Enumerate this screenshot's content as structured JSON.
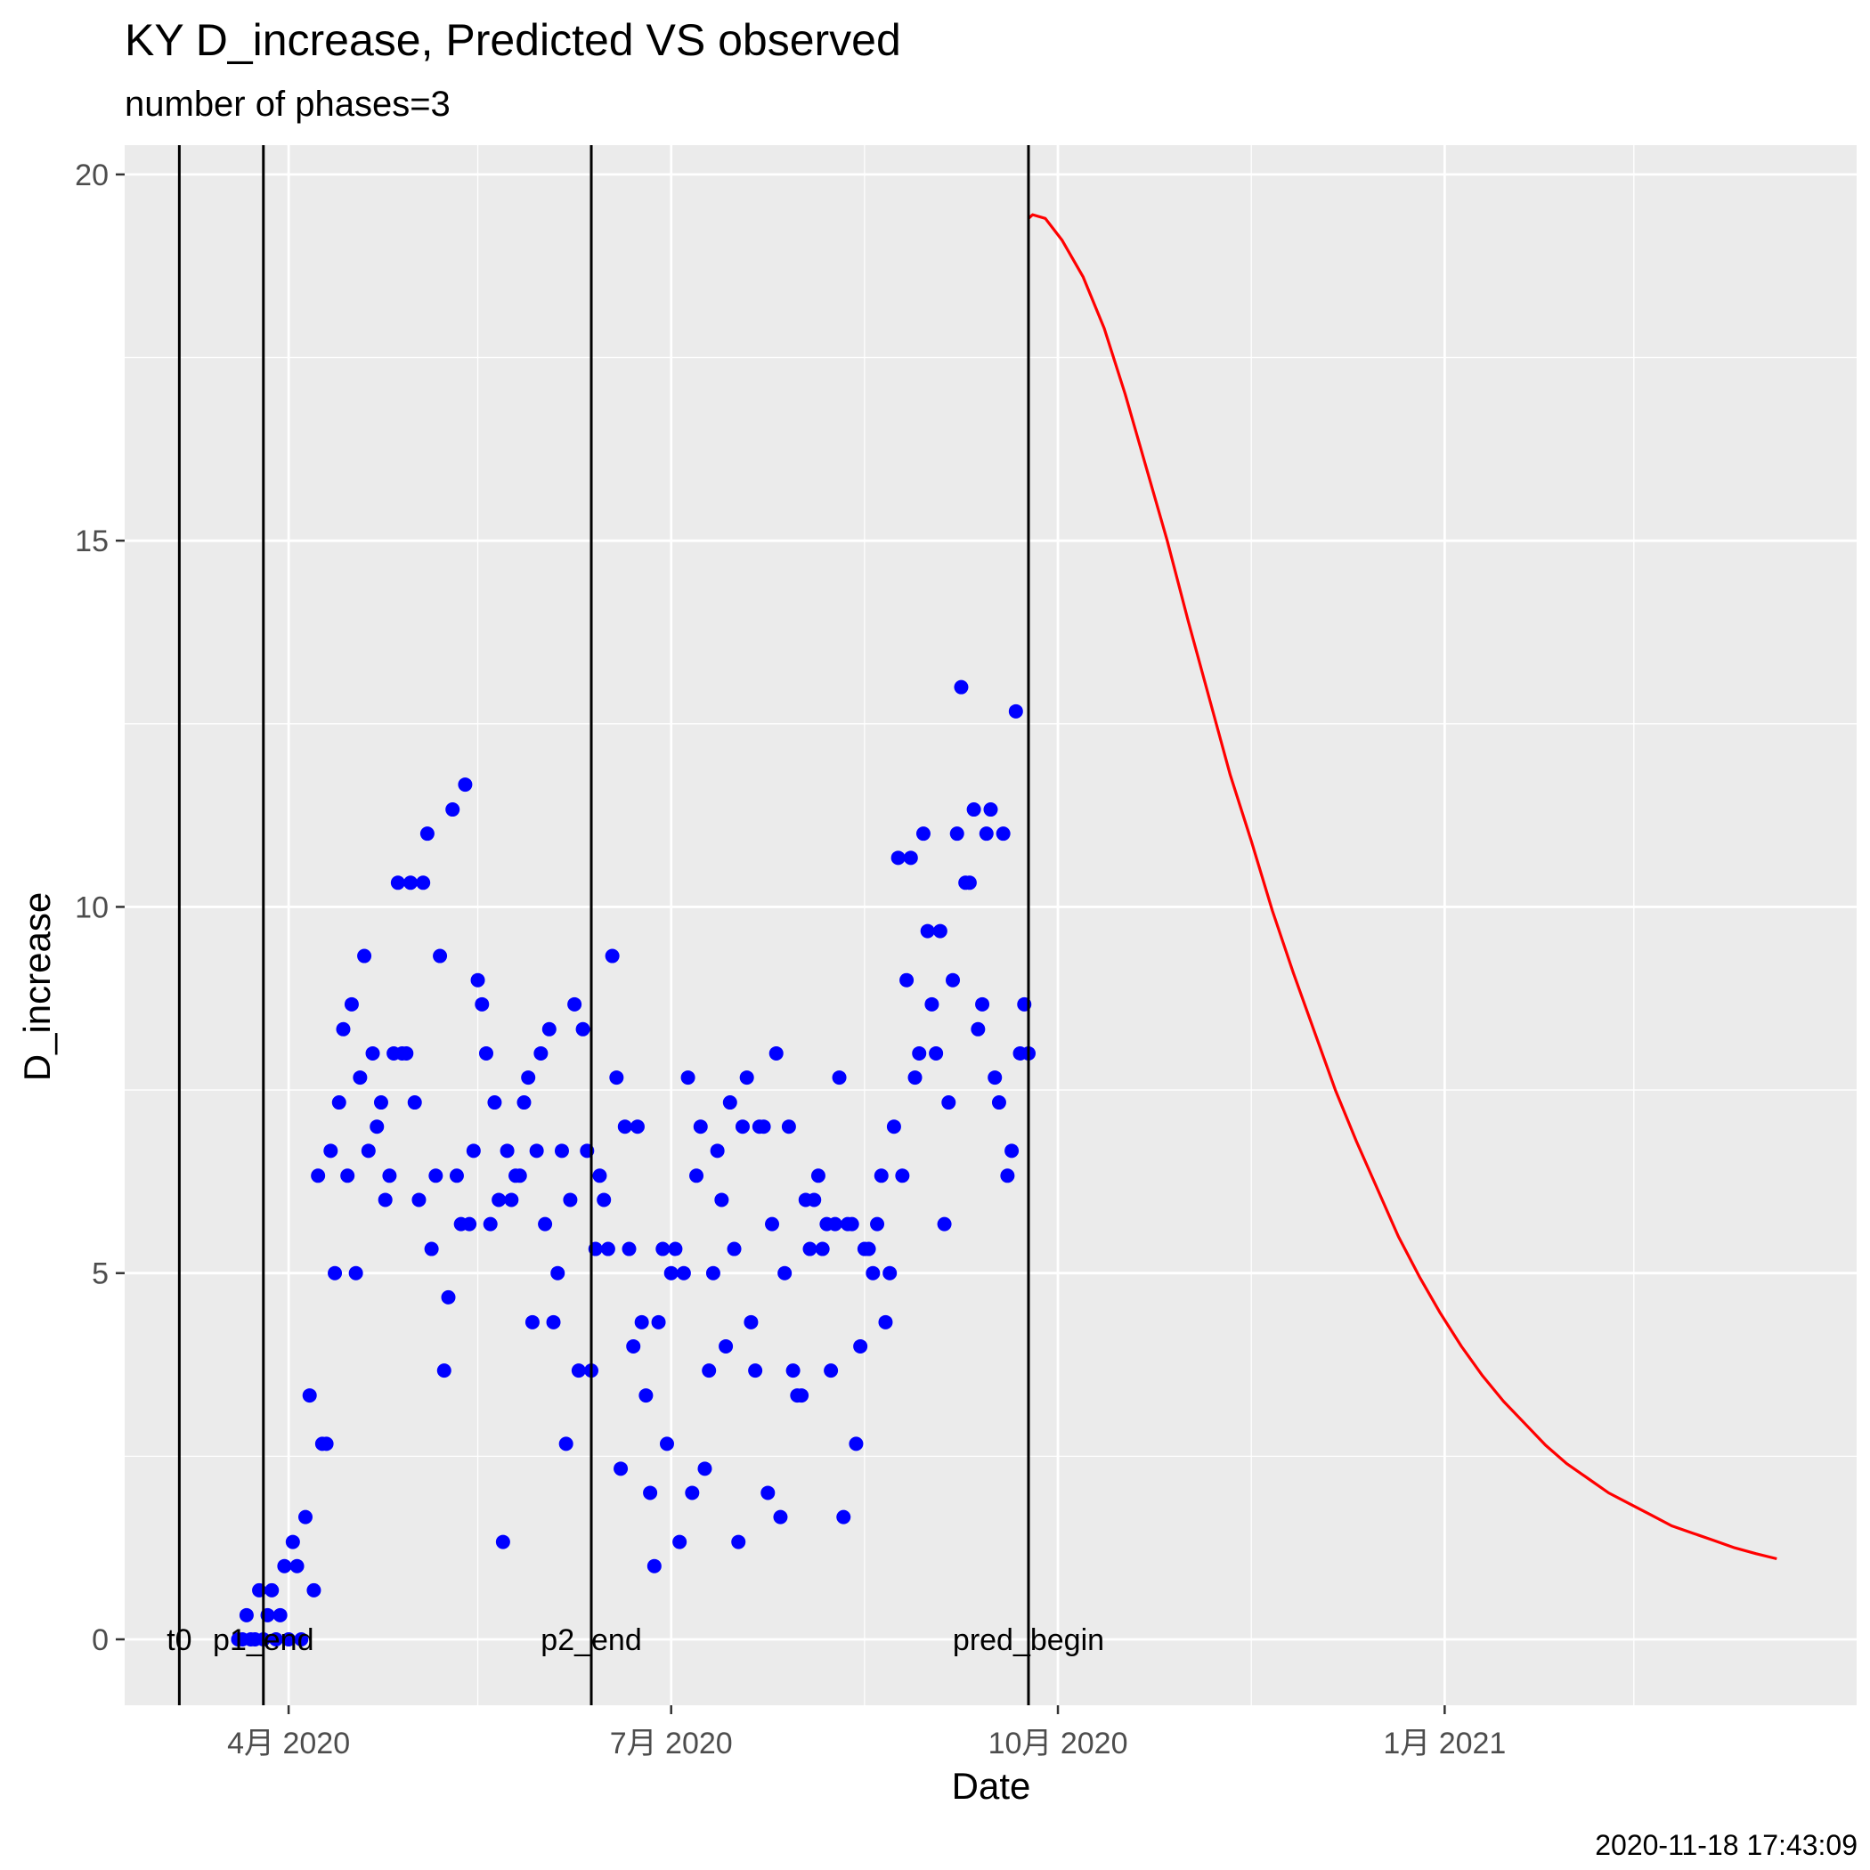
{
  "chart_data": {
    "type": "scatter",
    "title": "KY D_increase, Predicted VS observed",
    "subtitle": "number of phases=3",
    "xlabel": "Date",
    "ylabel": "D_increase",
    "caption": "2020-11-18 17:43:09",
    "xlim": [
      "2020-02-22",
      "2021-04-09"
    ],
    "ylim": [
      -0.9,
      20.4
    ],
    "x_ticks": [
      {
        "date": "2020-04-01",
        "label": "4月 2020"
      },
      {
        "date": "2020-07-01",
        "label": "7月 2020"
      },
      {
        "date": "2020-10-01",
        "label": "10月 2020"
      },
      {
        "date": "2021-01-01",
        "label": "1月 2021"
      }
    ],
    "x_minor_ticks": [
      "2020-02-15",
      "2020-05-16",
      "2020-08-16",
      "2020-11-16",
      "2021-02-15"
    ],
    "y_ticks": [
      0,
      5,
      10,
      15,
      20
    ],
    "y_minor_ticks": [
      2.5,
      7.5,
      12.5,
      17.5
    ],
    "grid": true,
    "background": "#ebebeb",
    "vlines": [
      {
        "date": "2020-03-06",
        "label": "t0"
      },
      {
        "date": "2020-03-26",
        "label": "p1_end"
      },
      {
        "date": "2020-06-12",
        "label": "p2_end"
      },
      {
        "date": "2020-09-24",
        "label": "pred_begin"
      }
    ],
    "series": [
      {
        "name": "observed",
        "kind": "points",
        "color": "#0000ff",
        "points": [
          [
            "2020-03-20",
            0
          ],
          [
            "2020-03-21",
            0
          ],
          [
            "2020-03-22",
            0.33
          ],
          [
            "2020-03-23",
            0
          ],
          [
            "2020-03-24",
            0
          ],
          [
            "2020-03-25",
            0.67
          ],
          [
            "2020-03-26",
            0
          ],
          [
            "2020-03-27",
            0.33
          ],
          [
            "2020-03-28",
            0.67
          ],
          [
            "2020-03-29",
            0
          ],
          [
            "2020-03-30",
            0.33
          ],
          [
            "2020-03-31",
            1
          ],
          [
            "2020-04-01",
            0
          ],
          [
            "2020-04-02",
            1.33
          ],
          [
            "2020-04-03",
            1
          ],
          [
            "2020-04-04",
            0
          ],
          [
            "2020-04-05",
            1.67
          ],
          [
            "2020-04-06",
            3.33
          ],
          [
            "2020-04-07",
            0.67
          ],
          [
            "2020-04-08",
            6.33
          ],
          [
            "2020-04-09",
            2.67
          ],
          [
            "2020-04-10",
            2.67
          ],
          [
            "2020-04-11",
            6.67
          ],
          [
            "2020-04-12",
            5
          ],
          [
            "2020-04-13",
            7.33
          ],
          [
            "2020-04-14",
            8.33
          ],
          [
            "2020-04-15",
            6.33
          ],
          [
            "2020-04-16",
            8.67
          ],
          [
            "2020-04-17",
            5
          ],
          [
            "2020-04-18",
            7.67
          ],
          [
            "2020-04-19",
            9.33
          ],
          [
            "2020-04-20",
            6.67
          ],
          [
            "2020-04-21",
            8
          ],
          [
            "2020-04-22",
            7
          ],
          [
            "2020-04-23",
            7.33
          ],
          [
            "2020-04-24",
            6
          ],
          [
            "2020-04-25",
            6.33
          ],
          [
            "2020-04-26",
            8
          ],
          [
            "2020-04-27",
            10.33
          ],
          [
            "2020-04-28",
            8
          ],
          [
            "2020-04-29",
            8
          ],
          [
            "2020-04-30",
            10.33
          ],
          [
            "2020-05-01",
            7.33
          ],
          [
            "2020-05-02",
            6
          ],
          [
            "2020-05-03",
            10.33
          ],
          [
            "2020-05-04",
            11
          ],
          [
            "2020-05-05",
            5.33
          ],
          [
            "2020-05-06",
            6.33
          ],
          [
            "2020-05-07",
            9.33
          ],
          [
            "2020-05-08",
            3.67
          ],
          [
            "2020-05-09",
            4.67
          ],
          [
            "2020-05-10",
            11.33
          ],
          [
            "2020-05-11",
            6.33
          ],
          [
            "2020-05-12",
            5.67
          ],
          [
            "2020-05-13",
            11.67
          ],
          [
            "2020-05-14",
            5.67
          ],
          [
            "2020-05-15",
            6.67
          ],
          [
            "2020-05-16",
            9
          ],
          [
            "2020-05-17",
            8.67
          ],
          [
            "2020-05-18",
            8
          ],
          [
            "2020-05-19",
            5.67
          ],
          [
            "2020-05-20",
            7.33
          ],
          [
            "2020-05-21",
            6
          ],
          [
            "2020-05-22",
            1.33
          ],
          [
            "2020-05-23",
            6.67
          ],
          [
            "2020-05-24",
            6
          ],
          [
            "2020-05-25",
            6.33
          ],
          [
            "2020-05-26",
            6.33
          ],
          [
            "2020-05-27",
            7.33
          ],
          [
            "2020-05-28",
            7.67
          ],
          [
            "2020-05-29",
            4.33
          ],
          [
            "2020-05-30",
            6.67
          ],
          [
            "2020-05-31",
            8
          ],
          [
            "2020-06-01",
            5.67
          ],
          [
            "2020-06-02",
            8.33
          ],
          [
            "2020-06-03",
            4.33
          ],
          [
            "2020-06-04",
            5
          ],
          [
            "2020-06-05",
            6.67
          ],
          [
            "2020-06-06",
            2.67
          ],
          [
            "2020-06-07",
            6
          ],
          [
            "2020-06-08",
            8.67
          ],
          [
            "2020-06-09",
            3.67
          ],
          [
            "2020-06-10",
            8.33
          ],
          [
            "2020-06-11",
            6.67
          ],
          [
            "2020-06-12",
            3.67
          ],
          [
            "2020-06-13",
            5.33
          ],
          [
            "2020-06-14",
            6.33
          ],
          [
            "2020-06-15",
            6
          ],
          [
            "2020-06-16",
            5.33
          ],
          [
            "2020-06-17",
            9.33
          ],
          [
            "2020-06-18",
            7.67
          ],
          [
            "2020-06-19",
            2.33
          ],
          [
            "2020-06-20",
            7
          ],
          [
            "2020-06-21",
            5.33
          ],
          [
            "2020-06-22",
            4
          ],
          [
            "2020-06-23",
            7
          ],
          [
            "2020-06-24",
            4.33
          ],
          [
            "2020-06-25",
            3.33
          ],
          [
            "2020-06-26",
            2
          ],
          [
            "2020-06-27",
            1
          ],
          [
            "2020-06-28",
            4.33
          ],
          [
            "2020-06-29",
            5.33
          ],
          [
            "2020-06-30",
            2.67
          ],
          [
            "2020-07-01",
            5
          ],
          [
            "2020-07-02",
            5.33
          ],
          [
            "2020-07-03",
            1.33
          ],
          [
            "2020-07-04",
            5
          ],
          [
            "2020-07-05",
            7.67
          ],
          [
            "2020-07-06",
            2
          ],
          [
            "2020-07-07",
            6.33
          ],
          [
            "2020-07-08",
            7
          ],
          [
            "2020-07-09",
            2.33
          ],
          [
            "2020-07-10",
            3.67
          ],
          [
            "2020-07-11",
            5
          ],
          [
            "2020-07-12",
            6.67
          ],
          [
            "2020-07-13",
            6
          ],
          [
            "2020-07-14",
            4
          ],
          [
            "2020-07-15",
            7.33
          ],
          [
            "2020-07-16",
            5.33
          ],
          [
            "2020-07-17",
            1.33
          ],
          [
            "2020-07-18",
            7
          ],
          [
            "2020-07-19",
            7.67
          ],
          [
            "2020-07-20",
            4.33
          ],
          [
            "2020-07-21",
            3.67
          ],
          [
            "2020-07-22",
            7
          ],
          [
            "2020-07-23",
            7
          ],
          [
            "2020-07-24",
            2
          ],
          [
            "2020-07-25",
            5.67
          ],
          [
            "2020-07-26",
            8
          ],
          [
            "2020-07-27",
            1.67
          ],
          [
            "2020-07-28",
            5
          ],
          [
            "2020-07-29",
            7
          ],
          [
            "2020-07-30",
            3.67
          ],
          [
            "2020-07-31",
            3.33
          ],
          [
            "2020-08-01",
            3.33
          ],
          [
            "2020-08-02",
            6
          ],
          [
            "2020-08-03",
            5.33
          ],
          [
            "2020-08-04",
            6
          ],
          [
            "2020-08-05",
            6.33
          ],
          [
            "2020-08-06",
            5.33
          ],
          [
            "2020-08-07",
            5.67
          ],
          [
            "2020-08-08",
            3.67
          ],
          [
            "2020-08-09",
            5.67
          ],
          [
            "2020-08-10",
            7.67
          ],
          [
            "2020-08-11",
            1.67
          ],
          [
            "2020-08-12",
            5.67
          ],
          [
            "2020-08-13",
            5.67
          ],
          [
            "2020-08-14",
            2.67
          ],
          [
            "2020-08-15",
            4
          ],
          [
            "2020-08-16",
            5.33
          ],
          [
            "2020-08-17",
            5.33
          ],
          [
            "2020-08-18",
            5
          ],
          [
            "2020-08-19",
            5.67
          ],
          [
            "2020-08-20",
            6.33
          ],
          [
            "2020-08-21",
            4.33
          ],
          [
            "2020-08-22",
            5
          ],
          [
            "2020-08-23",
            7
          ],
          [
            "2020-08-24",
            10.67
          ],
          [
            "2020-08-25",
            6.33
          ],
          [
            "2020-08-26",
            9
          ],
          [
            "2020-08-27",
            10.67
          ],
          [
            "2020-08-28",
            7.67
          ],
          [
            "2020-08-29",
            8
          ],
          [
            "2020-08-30",
            11
          ],
          [
            "2020-08-31",
            9.67
          ],
          [
            "2020-09-01",
            8.67
          ],
          [
            "2020-09-02",
            8
          ],
          [
            "2020-09-03",
            9.67
          ],
          [
            "2020-09-04",
            5.67
          ],
          [
            "2020-09-05",
            7.33
          ],
          [
            "2020-09-06",
            9
          ],
          [
            "2020-09-07",
            11
          ],
          [
            "2020-09-08",
            13
          ],
          [
            "2020-09-09",
            10.33
          ],
          [
            "2020-09-10",
            10.33
          ],
          [
            "2020-09-11",
            11.33
          ],
          [
            "2020-09-12",
            8.33
          ],
          [
            "2020-09-13",
            8.67
          ],
          [
            "2020-09-14",
            11
          ],
          [
            "2020-09-15",
            11.33
          ],
          [
            "2020-09-16",
            7.67
          ],
          [
            "2020-09-17",
            7.33
          ],
          [
            "2020-09-18",
            11
          ],
          [
            "2020-09-19",
            6.33
          ],
          [
            "2020-09-20",
            6.67
          ],
          [
            "2020-09-21",
            12.67
          ],
          [
            "2020-09-22",
            8
          ],
          [
            "2020-09-23",
            8.67
          ],
          [
            "2020-09-24",
            8
          ]
        ]
      },
      {
        "name": "predicted",
        "kind": "line",
        "color": "#ff0000",
        "points": [
          [
            "2020-09-24",
            19.4
          ],
          [
            "2020-09-25",
            19.45
          ],
          [
            "2020-09-28",
            19.4
          ],
          [
            "2020-10-02",
            19.1
          ],
          [
            "2020-10-07",
            18.6
          ],
          [
            "2020-10-12",
            17.9
          ],
          [
            "2020-10-17",
            17.0
          ],
          [
            "2020-10-22",
            16.0
          ],
          [
            "2020-10-27",
            15.0
          ],
          [
            "2020-11-01",
            13.9
          ],
          [
            "2020-11-06",
            12.85
          ],
          [
            "2020-11-11",
            11.8
          ],
          [
            "2020-11-16",
            10.9
          ],
          [
            "2020-11-21",
            9.95
          ],
          [
            "2020-11-26",
            9.1
          ],
          [
            "2020-12-01",
            8.3
          ],
          [
            "2020-12-06",
            7.5
          ],
          [
            "2020-12-11",
            6.8
          ],
          [
            "2020-12-16",
            6.15
          ],
          [
            "2020-12-21",
            5.5
          ],
          [
            "2020-12-26",
            4.95
          ],
          [
            "2020-12-31",
            4.45
          ],
          [
            "2021-01-05",
            4.0
          ],
          [
            "2021-01-10",
            3.6
          ],
          [
            "2021-01-15",
            3.25
          ],
          [
            "2021-01-20",
            2.95
          ],
          [
            "2021-01-25",
            2.65
          ],
          [
            "2021-01-30",
            2.4
          ],
          [
            "2021-02-04",
            2.2
          ],
          [
            "2021-02-09",
            2.0
          ],
          [
            "2021-02-14",
            1.85
          ],
          [
            "2021-02-19",
            1.7
          ],
          [
            "2021-02-24",
            1.55
          ],
          [
            "2021-03-01",
            1.45
          ],
          [
            "2021-03-06",
            1.35
          ],
          [
            "2021-03-11",
            1.25
          ],
          [
            "2021-03-16",
            1.17
          ],
          [
            "2021-03-21",
            1.1
          ]
        ]
      }
    ]
  }
}
